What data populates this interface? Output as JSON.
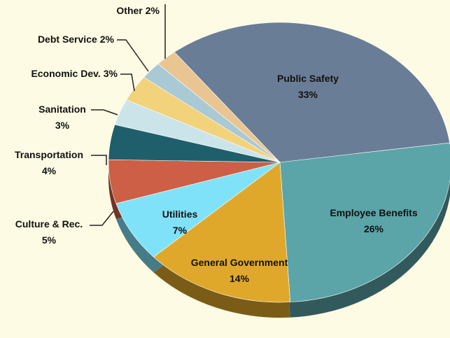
{
  "chart_data": {
    "type": "pie",
    "categories": [
      "Public Safety",
      "Employee Benefits",
      "General Government",
      "Utilities",
      "Culture & Rec.",
      "Transportation",
      "Sanitation",
      "Economic Dev.",
      "Debt Service",
      "Other"
    ],
    "values": [
      33,
      26,
      14,
      7,
      5,
      4,
      3,
      3,
      2,
      2
    ],
    "value_labels": [
      "33%",
      "26%",
      "14%",
      "7%",
      "5%",
      "4%",
      "3%",
      "3%",
      "2%",
      "2%"
    ],
    "colors": [
      "#6a7d96",
      "#5ba4a8",
      "#e0a82a",
      "#80e2f8",
      "#cc5f45",
      "#1f5f6b",
      "#cbe4ea",
      "#f2d27a",
      "#a9c9d4",
      "#e9c591"
    ]
  }
}
